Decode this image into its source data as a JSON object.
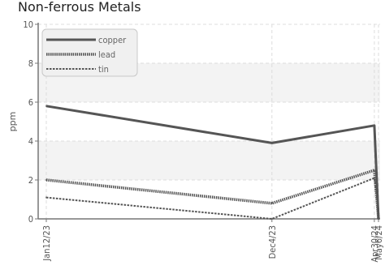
{
  "chart_data": {
    "type": "line",
    "title": "Non-ferrous Metals",
    "ylabel": "ppm",
    "xlabel": "",
    "ylim": [
      0,
      10
    ],
    "yticks": [
      0,
      2,
      4,
      6,
      8,
      10
    ],
    "categories": [
      "Jan12/23",
      "Dec4/23",
      "Apr30/24",
      "May6/24"
    ],
    "x": [
      "2023-01-12",
      "2023-12-04",
      "2024-04-30",
      "2024-05-06"
    ],
    "grid": true,
    "legend": "top-left",
    "series": [
      {
        "name": "copper",
        "values": [
          5.8,
          3.9,
          4.8,
          0.0
        ],
        "color": "#555555",
        "style": "solid"
      },
      {
        "name": "lead",
        "values": [
          2.0,
          0.8,
          2.5,
          0.0
        ],
        "color": "#555555",
        "style": "dotted"
      },
      {
        "name": "tin",
        "values": [
          1.1,
          0.0,
          2.1,
          0.5
        ],
        "color": "#555555",
        "style": "dashed"
      }
    ]
  }
}
